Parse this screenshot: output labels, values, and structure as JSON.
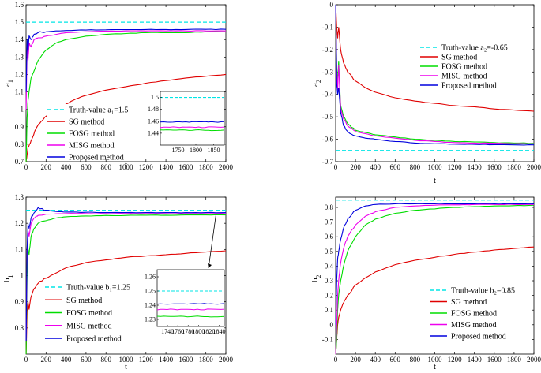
{
  "colors": {
    "truth": "#00e5e5",
    "sg": "#e00000",
    "fosg": "#00dd00",
    "mlsg": "#ee00ee",
    "proposed": "#0000dd"
  },
  "chart_data": [
    {
      "type": "line",
      "id": "a1",
      "xlabel": "t",
      "ylabel": "a",
      "ylabel_sub": "1",
      "xlim": [
        0,
        2000
      ],
      "ylim": [
        0.7,
        1.6
      ],
      "xticks": [
        0,
        200,
        400,
        600,
        800,
        1000,
        1200,
        1400,
        1600,
        1800,
        2000
      ],
      "yticks": [
        0.7,
        0.8,
        0.9,
        1,
        1.1,
        1.2,
        1.3,
        1.4,
        1.5,
        1.6
      ],
      "ytick_labels": [
        "0.7",
        "0.8",
        "0.9",
        "1",
        "1.1",
        "1.2",
        "1.3",
        "1.4",
        "1.5",
        "1.6"
      ],
      "legend": [
        "Truth-value a₁=1.5",
        "SG method",
        "FOSG method",
        "MISG method",
        "Proposed method"
      ],
      "truth": 1.5,
      "series": [
        {
          "name": "SG method",
          "x": [
            1,
            10,
            20,
            50,
            100,
            150,
            200,
            300,
            400,
            500,
            600,
            800,
            1000,
            1200,
            1400,
            1600,
            1800,
            2000
          ],
          "y": [
            0.7,
            0.74,
            0.78,
            0.82,
            0.89,
            0.93,
            0.96,
            1.0,
            1.03,
            1.06,
            1.08,
            1.11,
            1.13,
            1.15,
            1.165,
            1.18,
            1.19,
            1.2
          ]
        },
        {
          "name": "FOSG method",
          "x": [
            1,
            10,
            20,
            30,
            50,
            80,
            120,
            200,
            300,
            400,
            600,
            800,
            1000,
            1200,
            1400,
            1600,
            1800,
            2000
          ],
          "y": [
            0.7,
            0.95,
            1.05,
            1.1,
            1.18,
            1.22,
            1.28,
            1.34,
            1.38,
            1.4,
            1.42,
            1.43,
            1.435,
            1.44,
            1.44,
            1.44,
            1.445,
            1.445
          ]
        },
        {
          "name": "MISG method",
          "x": [
            1,
            10,
            20,
            30,
            50,
            80,
            120,
            200,
            300,
            400,
            600,
            800,
            1000,
            1200,
            1400,
            1600,
            1800,
            2000
          ],
          "y": [
            1.0,
            1.35,
            1.28,
            1.38,
            1.36,
            1.4,
            1.41,
            1.42,
            1.43,
            1.44,
            1.445,
            1.448,
            1.45,
            1.45,
            1.45,
            1.45,
            1.45,
            1.45
          ]
        },
        {
          "name": "Proposed method",
          "x": [
            1,
            10,
            20,
            30,
            50,
            80,
            120,
            200,
            300,
            400,
            600,
            800,
            1000,
            1200,
            1400,
            1600,
            1800,
            2000
          ],
          "y": [
            1.1,
            1.4,
            1.33,
            1.42,
            1.4,
            1.43,
            1.44,
            1.445,
            1.45,
            1.452,
            1.455,
            1.456,
            1.457,
            1.458,
            1.458,
            1.458,
            1.459,
            1.459
          ]
        }
      ],
      "inset": {
        "xlim": [
          1700,
          1880
        ],
        "ylim": [
          1.42,
          1.51
        ],
        "xticks": [
          1750,
          1800,
          1850
        ],
        "yticks": [
          1.44,
          1.46,
          1.48,
          1.5
        ],
        "ytick_labels": [
          "1.44",
          "1.46",
          "1.48",
          "1.5"
        ],
        "lines": [
          1.5,
          1.459,
          1.45,
          1.445
        ],
        "xtick_labels": [
          "1750",
          "1800",
          "1850"
        ]
      }
    },
    {
      "type": "line",
      "id": "a2",
      "xlabel": "t",
      "ylabel": "a",
      "ylabel_sub": "2",
      "xlim": [
        0,
        2000
      ],
      "ylim": [
        -0.7,
        0
      ],
      "xticks": [
        0,
        200,
        400,
        600,
        800,
        1000,
        1200,
        1400,
        1600,
        1800,
        2000
      ],
      "yticks": [
        -0.7,
        -0.6,
        -0.5,
        -0.4,
        -0.3,
        -0.2,
        -0.1,
        0
      ],
      "ytick_labels": [
        "-0.7",
        "-0.6",
        "-0.5",
        "-0.4",
        "-0.3",
        "-0.2",
        "-0.1",
        "0"
      ],
      "legend": [
        "Truth-value a₂=-0.65",
        "SG method",
        "FOSG method",
        "MISG method",
        "Proposed method"
      ],
      "truth": -0.65,
      "series": [
        {
          "name": "SG method",
          "x": [
            1,
            10,
            20,
            30,
            50,
            80,
            120,
            200,
            300,
            400,
            600,
            800,
            1000,
            1200,
            1400,
            1600,
            1800,
            2000
          ],
          "y": [
            0,
            -0.1,
            -0.15,
            -0.1,
            -0.2,
            -0.26,
            -0.3,
            -0.34,
            -0.37,
            -0.39,
            -0.415,
            -0.43,
            -0.44,
            -0.45,
            -0.455,
            -0.465,
            -0.47,
            -0.475
          ]
        },
        {
          "name": "FOSG method",
          "x": [
            1,
            10,
            20,
            30,
            50,
            80,
            120,
            200,
            300,
            400,
            600,
            800,
            1000,
            1200,
            1400,
            1600,
            1800,
            2000
          ],
          "y": [
            0,
            -0.28,
            -0.35,
            -0.25,
            -0.45,
            -0.5,
            -0.53,
            -0.56,
            -0.57,
            -0.58,
            -0.59,
            -0.6,
            -0.605,
            -0.61,
            -0.612,
            -0.615,
            -0.617,
            -0.618
          ]
        },
        {
          "name": "MISG method",
          "x": [
            1,
            10,
            20,
            30,
            50,
            80,
            120,
            200,
            300,
            400,
            600,
            800,
            1000,
            1200,
            1400,
            1600,
            1800,
            2000
          ],
          "y": [
            0,
            -0.3,
            -0.38,
            -0.27,
            -0.46,
            -0.51,
            -0.54,
            -0.565,
            -0.575,
            -0.585,
            -0.595,
            -0.605,
            -0.61,
            -0.615,
            -0.617,
            -0.618,
            -0.62,
            -0.62
          ]
        },
        {
          "name": "Proposed method",
          "x": [
            1,
            10,
            20,
            30,
            50,
            80,
            120,
            200,
            300,
            400,
            600,
            800,
            1000,
            1200,
            1400,
            1600,
            1800,
            2000
          ],
          "y": [
            0,
            -0.35,
            -0.4,
            -0.37,
            -0.48,
            -0.54,
            -0.565,
            -0.585,
            -0.595,
            -0.6,
            -0.61,
            -0.617,
            -0.62,
            -0.622,
            -0.623,
            -0.624,
            -0.625,
            -0.625
          ]
        }
      ]
    },
    {
      "type": "line",
      "id": "b1",
      "xlabel": "t",
      "ylabel": "b",
      "ylabel_sub": "1",
      "xlim": [
        0,
        2000
      ],
      "ylim": [
        0.7,
        1.3
      ],
      "xticks": [
        0,
        200,
        400,
        600,
        800,
        1000,
        1200,
        1400,
        1600,
        1800,
        2000
      ],
      "yticks": [
        0.8,
        0.9,
        1,
        1.1,
        1.2,
        1.3
      ],
      "ytick_labels": [
        "0.8",
        "0.9",
        "1",
        "1.1",
        "1.2",
        "1.3"
      ],
      "legend": [
        "Truth-value b₁=1.25",
        "SG method",
        "FOSG method",
        "MISG method",
        "Proposed method"
      ],
      "truth": 1.25,
      "series": [
        {
          "name": "SG method",
          "x": [
            1,
            10,
            20,
            30,
            50,
            80,
            120,
            200,
            300,
            400,
            600,
            800,
            1000,
            1200,
            1400,
            1600,
            1800,
            2000
          ],
          "y": [
            0.7,
            0.86,
            0.9,
            0.87,
            0.92,
            0.95,
            0.97,
            0.99,
            1.01,
            1.03,
            1.05,
            1.06,
            1.07,
            1.075,
            1.08,
            1.085,
            1.09,
            1.095
          ]
        },
        {
          "name": "FOSG method",
          "x": [
            1,
            10,
            20,
            30,
            50,
            80,
            120,
            200,
            300,
            400,
            600,
            800,
            1000,
            1200,
            1400,
            1600,
            1800,
            2000
          ],
          "y": [
            0.7,
            1.0,
            1.1,
            1.08,
            1.15,
            1.18,
            1.2,
            1.21,
            1.22,
            1.225,
            1.228,
            1.23,
            1.23,
            1.231,
            1.231,
            1.232,
            1.232,
            1.232
          ]
        },
        {
          "name": "MISG method",
          "x": [
            1,
            10,
            20,
            30,
            50,
            80,
            120,
            200,
            300,
            400,
            600,
            800,
            1000,
            1200,
            1400,
            1600,
            1800,
            2000
          ],
          "y": [
            0.75,
            1.1,
            1.17,
            1.15,
            1.2,
            1.22,
            1.23,
            1.235,
            1.236,
            1.237,
            1.237,
            1.237,
            1.237,
            1.237,
            1.237,
            1.237,
            1.237,
            1.237
          ]
        },
        {
          "name": "Proposed method",
          "x": [
            1,
            10,
            20,
            30,
            50,
            80,
            120,
            200,
            300,
            400,
            600,
            800,
            1000,
            1200,
            1400,
            1600,
            1800,
            2000
          ],
          "y": [
            0.75,
            1.1,
            1.2,
            1.18,
            1.22,
            1.24,
            1.26,
            1.25,
            1.245,
            1.243,
            1.242,
            1.241,
            1.241,
            1.241,
            1.241,
            1.241,
            1.241,
            1.241
          ]
        }
      ],
      "inset": {
        "xlim": [
          1720,
          1850
        ],
        "ylim": [
          1.225,
          1.265
        ],
        "xticks": [
          1740,
          1760,
          1780,
          1800,
          1820,
          1840
        ],
        "yticks": [
          1.23,
          1.24,
          1.25,
          1.26
        ],
        "ytick_labels": [
          "1.23",
          "1.24",
          "1.25",
          "1.26"
        ],
        "lines": [
          1.25,
          1.241,
          1.237,
          1.232
        ],
        "xtick_labels": [
          "1740",
          "1760",
          "1780",
          "1800",
          "1820",
          "1840"
        ]
      }
    },
    {
      "type": "line",
      "id": "b2",
      "xlabel": "t",
      "ylabel": "b",
      "ylabel_sub": "2",
      "xlim": [
        0,
        2000
      ],
      "ylim": [
        -0.2,
        0.87
      ],
      "xticks": [
        0,
        200,
        400,
        600,
        800,
        1000,
        1200,
        1400,
        1600,
        1800,
        2000
      ],
      "yticks": [
        -0.1,
        0,
        0.1,
        0.2,
        0.3,
        0.4,
        0.5,
        0.6,
        0.7,
        0.8
      ],
      "ytick_labels": [
        "-0.1",
        "0",
        "0.1",
        "0.2",
        "0.3",
        "0.4",
        "0.5",
        "0.6",
        "0.7",
        "0.8"
      ],
      "legend": [
        "Truth-value b₂=0.85",
        "SG method",
        "FOSG method",
        "MISG method",
        "Proposed method"
      ],
      "truth": 0.85,
      "series": [
        {
          "name": "SG method",
          "x": [
            1,
            10,
            20,
            30,
            50,
            80,
            120,
            200,
            300,
            400,
            600,
            800,
            1000,
            1200,
            1400,
            1600,
            1800,
            2000
          ],
          "y": [
            -0.2,
            -0.1,
            0.0,
            0.05,
            0.1,
            0.15,
            0.2,
            0.27,
            0.32,
            0.36,
            0.41,
            0.44,
            0.46,
            0.48,
            0.495,
            0.51,
            0.52,
            0.53
          ]
        },
        {
          "name": "FOSG method",
          "x": [
            1,
            10,
            20,
            30,
            50,
            80,
            120,
            200,
            300,
            400,
            600,
            800,
            1000,
            1200,
            1400,
            1600,
            1800,
            2000
          ],
          "y": [
            -0.2,
            -0.1,
            0.1,
            0.2,
            0.3,
            0.4,
            0.5,
            0.6,
            0.68,
            0.72,
            0.76,
            0.78,
            0.79,
            0.8,
            0.805,
            0.81,
            0.812,
            0.815
          ]
        },
        {
          "name": "MISG method",
          "x": [
            1,
            10,
            20,
            30,
            50,
            80,
            120,
            200,
            300,
            400,
            600,
            800,
            1000,
            1200,
            1400,
            1600,
            1800,
            2000
          ],
          "y": [
            -0.2,
            0.0,
            0.2,
            0.3,
            0.42,
            0.52,
            0.6,
            0.68,
            0.74,
            0.77,
            0.8,
            0.81,
            0.815,
            0.818,
            0.82,
            0.82,
            0.82,
            0.82
          ]
        },
        {
          "name": "Proposed method",
          "x": [
            1,
            10,
            20,
            30,
            50,
            80,
            120,
            200,
            300,
            400,
            600,
            800,
            1000,
            1200,
            1400,
            1600,
            1800,
            2000
          ],
          "y": [
            0.0,
            0.3,
            0.45,
            0.5,
            0.58,
            0.66,
            0.72,
            0.78,
            0.81,
            0.82,
            0.825,
            0.825,
            0.825,
            0.825,
            0.825,
            0.825,
            0.825,
            0.825
          ]
        }
      ]
    }
  ]
}
